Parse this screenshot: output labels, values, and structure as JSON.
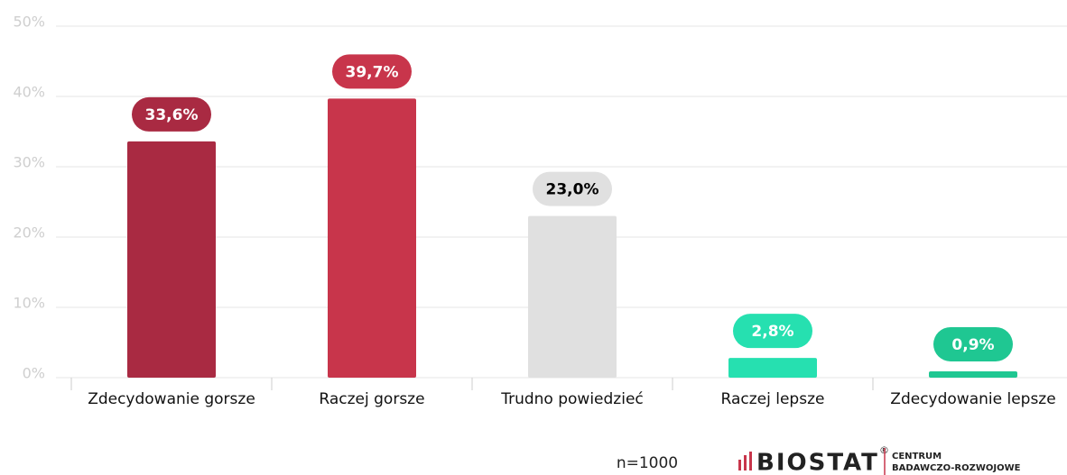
{
  "chart_data": {
    "type": "bar",
    "categories": [
      "Zdecydowanie gorsze",
      "Raczej gorsze",
      "Trudno powiedzieć",
      "Raczej lepsze",
      "Zdecydowanie lepsze"
    ],
    "values": [
      33.6,
      39.7,
      23.0,
      2.8,
      0.9
    ],
    "value_labels": [
      "33,6%",
      "39,7%",
      "23,0%",
      "2,8%",
      "0,9%"
    ],
    "colors": [
      "#a92a42",
      "#c8354b",
      "#e0e0e0",
      "#26e0b0",
      "#1fc792"
    ],
    "label_text_colors": [
      "#ffffff",
      "#ffffff",
      "#000000",
      "#ffffff",
      "#ffffff"
    ],
    "ylim": [
      0,
      50
    ],
    "yticks": [
      {
        "value": 0,
        "label": "0%"
      },
      {
        "value": 10,
        "label": "10%"
      },
      {
        "value": 20,
        "label": "20%"
      },
      {
        "value": 30,
        "label": "30%"
      },
      {
        "value": 40,
        "label": "40%"
      },
      {
        "value": 50,
        "label": "50%"
      }
    ],
    "grid": true
  },
  "footer": {
    "sample": "n=1000",
    "brand": "BIOSTAT",
    "registered": "®",
    "tagline": [
      "CENTRUM",
      "BADAWCZO-ROZWOJOWE"
    ]
  }
}
